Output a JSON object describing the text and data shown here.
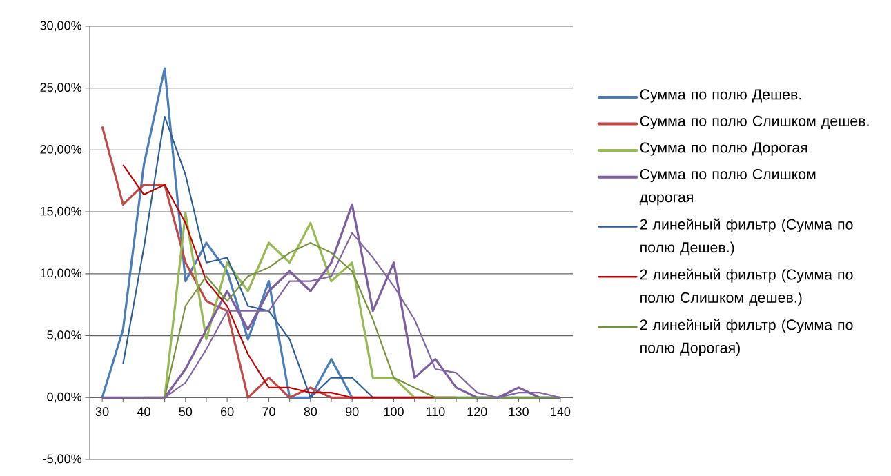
{
  "chart_data": {
    "type": "line",
    "x": [
      30,
      35,
      40,
      45,
      50,
      55,
      60,
      65,
      70,
      75,
      80,
      85,
      90,
      95,
      100,
      105,
      110,
      115,
      120,
      125,
      130,
      135,
      140
    ],
    "xlim": [
      27,
      143
    ],
    "xticks": [
      30,
      {
        "value": 35,
        "label": null
      },
      40,
      {
        "value": 45,
        "label": null
      },
      50,
      {
        "value": 55,
        "label": null
      },
      60,
      {
        "value": 65,
        "label": null
      },
      70,
      {
        "value": 75,
        "label": null
      },
      80,
      {
        "value": 85,
        "label": null
      },
      90,
      {
        "value": 95,
        "label": null
      },
      100,
      {
        "value": 105,
        "label": null
      },
      110,
      {
        "value": 115,
        "label": null
      },
      120,
      {
        "value": 125,
        "label": null
      },
      130,
      {
        "value": 135,
        "label": null
      },
      140
    ],
    "ylim": [
      -5,
      30
    ],
    "yticks": [
      {
        "value": -5,
        "label": "-5,00%"
      },
      {
        "value": 0,
        "label": "0,00%"
      },
      {
        "value": 5,
        "label": "5,00%"
      },
      {
        "value": 10,
        "label": "10,00%"
      },
      {
        "value": 15,
        "label": "15,00%"
      },
      {
        "value": 20,
        "label": "20,00%"
      },
      {
        "value": 25,
        "label": "25,00%"
      },
      {
        "value": 30,
        "label": "30,00%"
      }
    ],
    "grid": "y",
    "legend": "right",
    "marker": "none",
    "line_style": "solid",
    "series": [
      {
        "name": "Сумма по полю Дешев.",
        "color": "#4a7ebb",
        "values": [
          0,
          5.5,
          18.8,
          26.6,
          9.4,
          12.5,
          10.2,
          4.7,
          9.4,
          0,
          0,
          3.1,
          0,
          0,
          0,
          0,
          0,
          0,
          0,
          0,
          0,
          0,
          0
        ]
      },
      {
        "name": "Сумма по полю Слишком дешев.",
        "color": "#be4b48",
        "values": [
          21.9,
          15.6,
          17.2,
          17.2,
          10.9,
          7.8,
          7.0,
          0,
          1.6,
          0,
          0.8,
          0,
          0,
          0,
          0,
          0,
          0,
          0,
          null,
          null,
          null,
          null,
          null
        ]
      },
      {
        "name": "Сумма по полю Дорогая",
        "color": "#98b954",
        "values": [
          null,
          null,
          0,
          0,
          14.9,
          4.7,
          10.9,
          8.6,
          12.5,
          10.9,
          14.1,
          9.4,
          10.9,
          1.6,
          1.6,
          0,
          0,
          0,
          0,
          0,
          0,
          0,
          0
        ]
      },
      {
        "name": "Сумма по полю Слишком дорогая",
        "color": "#7d5fa0",
        "values": [
          0,
          0,
          0,
          0,
          2.3,
          5.5,
          8.6,
          5.5,
          8.6,
          10.2,
          8.6,
          10.9,
          15.6,
          7.0,
          10.9,
          1.6,
          3.1,
          0.8,
          0,
          0,
          0.8,
          0,
          0
        ]
      },
      {
        "name": "2 линейный фильтр (Сумма по полю Дешев.)",
        "color": "#2c5d98",
        "values": [
          null,
          2.7,
          12.1,
          22.7,
          18.0,
          10.9,
          11.3,
          7.4,
          7.0,
          4.7,
          0,
          1.6,
          1.6,
          0,
          0,
          0,
          0,
          0,
          0,
          0,
          0,
          0,
          0
        ]
      },
      {
        "name": "2 линейный фильтр (Сумма по полю Слишком дешев.)",
        "color": "#c00000",
        "values": [
          null,
          18.8,
          16.4,
          17.2,
          14.1,
          9.4,
          7.4,
          3.5,
          0.8,
          0.8,
          0.4,
          0.4,
          0,
          0,
          0,
          0,
          0,
          0,
          null,
          null,
          null,
          null,
          null
        ]
      },
      {
        "name": "2 линейный фильтр (Сумма по полю Дорогая)",
        "color": "#77933c",
        "values": [
          null,
          0,
          0,
          0,
          7.4,
          9.8,
          7.8,
          9.8,
          10.5,
          11.7,
          12.5,
          11.7,
          10.2,
          6.3,
          1.6,
          0.8,
          0,
          0,
          0,
          0,
          0,
          0,
          0
        ]
      },
      {
        "color": "#8064a2",
        "values": [
          null,
          0,
          0,
          0,
          1.2,
          3.9,
          7.0,
          7.0,
          7.0,
          9.4,
          9.4,
          9.8,
          13.3,
          11.3,
          9.0,
          6.3,
          2.3,
          2.0,
          0.4,
          0,
          0.4,
          0.4,
          0
        ]
      }
    ]
  }
}
